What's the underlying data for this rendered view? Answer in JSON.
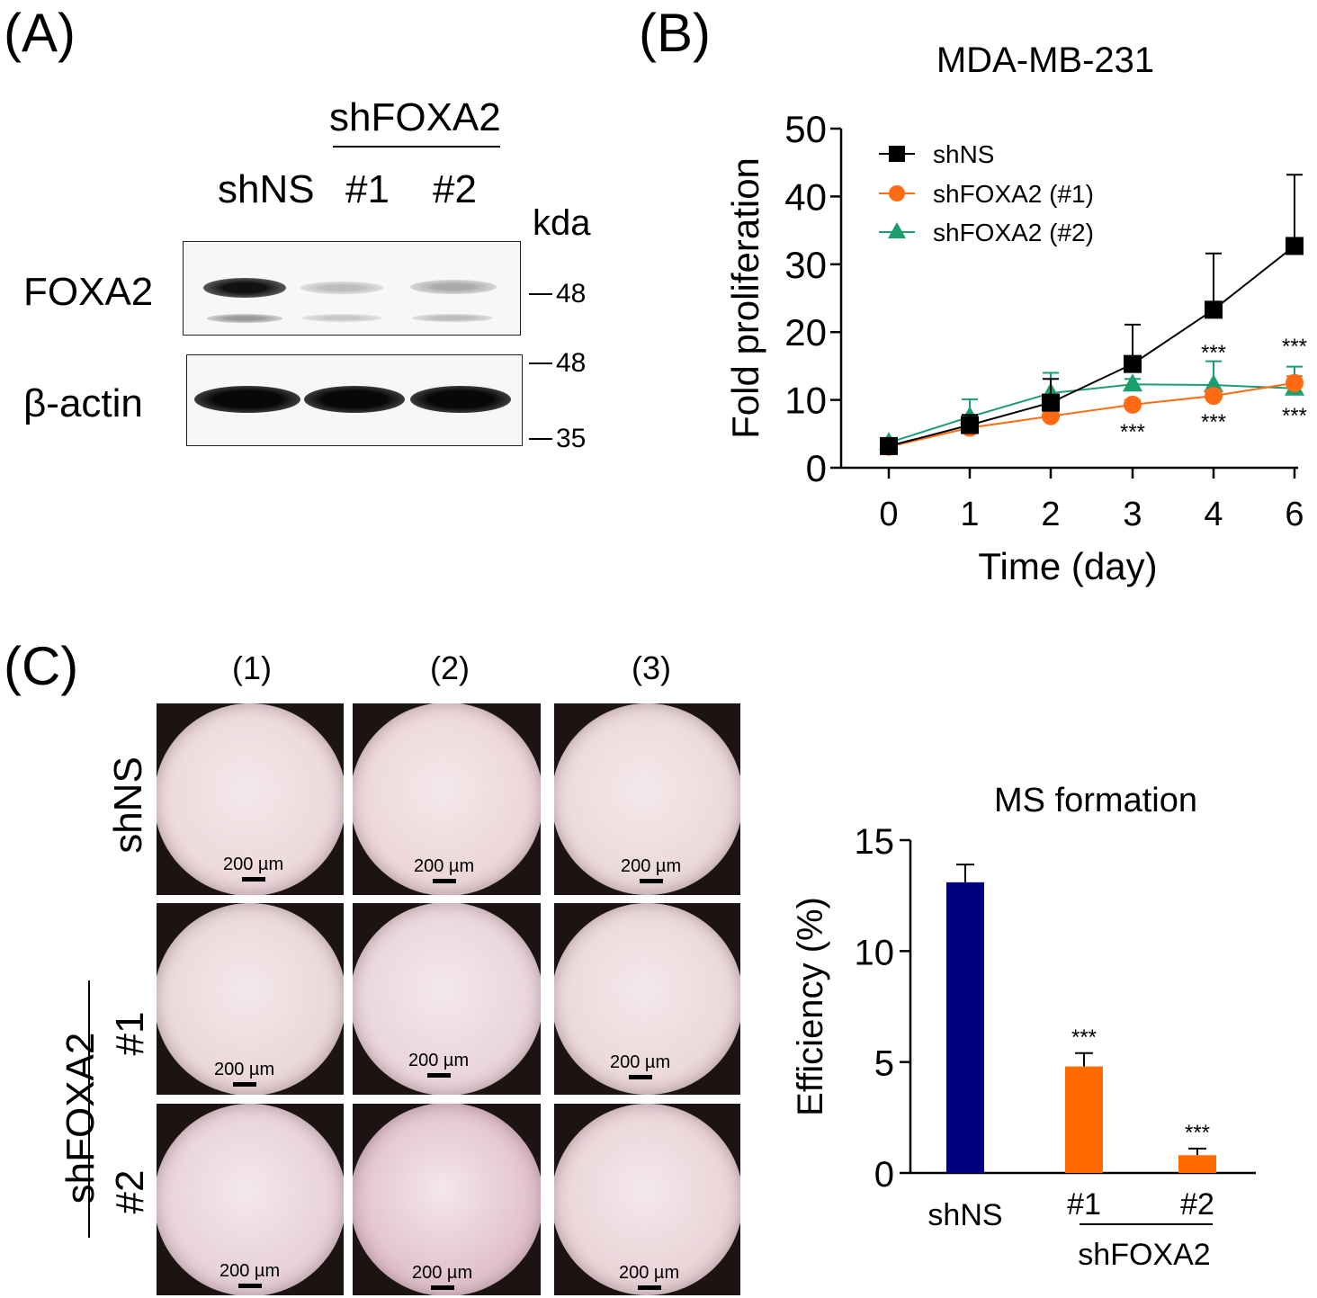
{
  "panelA": {
    "label": "(A)",
    "group_label": "shFOXA2",
    "lanes": [
      "shNS",
      "#1",
      "#2"
    ],
    "kda_label": "kda",
    "rows": [
      {
        "name": "FOXA2",
        "markers": [
          "48"
        ]
      },
      {
        "name": "β-actin",
        "markers": [
          "48",
          "35"
        ]
      }
    ]
  },
  "panelB": {
    "label": "(B)",
    "chart_data": {
      "type": "line",
      "title": "MDA-MB-231",
      "xlabel": "Time (day)",
      "ylabel": "Fold proliferation",
      "x": [
        0,
        1,
        2,
        3,
        4,
        6
      ],
      "x_ticks": [
        "0",
        "1",
        "2",
        "3",
        "4",
        "6"
      ],
      "ylim": [
        0,
        50
      ],
      "y_ticks": [
        "0",
        "10",
        "20",
        "30",
        "40",
        "50"
      ],
      "legend_position": "top-left",
      "series": [
        {
          "name": "shNS",
          "color": "#000000",
          "marker": "square",
          "values": [
            3.2,
            6.3,
            9.6,
            15.3,
            23.3,
            32.7
          ],
          "errors": [
            0.5,
            1.5,
            3.5,
            5.8,
            8.3,
            10.5
          ]
        },
        {
          "name": "shFOXA2 (#1)",
          "color": "#ff6a13",
          "marker": "circle",
          "values": [
            3.1,
            5.9,
            7.6,
            9.3,
            10.6,
            12.5
          ],
          "errors": [
            0.3,
            0.5,
            0.6,
            0.7,
            0.8,
            1.0
          ]
        },
        {
          "name": "shFOXA2 (#2)",
          "color": "#1a9e6e",
          "marker": "triangle",
          "values": [
            3.7,
            7.5,
            11.0,
            12.3,
            12.2,
            11.7
          ],
          "errors": [
            0.5,
            2.6,
            3.0,
            0.8,
            3.5,
            3.2
          ]
        }
      ],
      "annotations": [
        {
          "x": 3,
          "text": "***",
          "position": "below"
        },
        {
          "x": 4,
          "text": "***",
          "position": "above"
        },
        {
          "x": 4,
          "text": "***",
          "position": "below"
        },
        {
          "x": 6,
          "text": "***",
          "position": "above"
        },
        {
          "x": 6,
          "text": "***",
          "position": "below"
        }
      ]
    }
  },
  "panelC": {
    "label": "(C)",
    "columns": [
      "(1)",
      "(2)",
      "(3)"
    ],
    "row_labels": {
      "shNS": "shNS",
      "group": "shFOXA2",
      "r1": "#1",
      "r2": "#2"
    },
    "scale_bar_label": "200 µm",
    "chart_data": {
      "type": "bar",
      "title": "MS formation",
      "ylabel": "Efficiency (%)",
      "categories": [
        "shNS",
        "#1",
        "#2"
      ],
      "group_label": "shFOXA2",
      "values": [
        13.1,
        4.8,
        0.8
      ],
      "errors": [
        0.8,
        0.6,
        0.3
      ],
      "colors": [
        "#00007f",
        "#ff6a00",
        "#ff6a00"
      ],
      "ylim": [
        0,
        15
      ],
      "y_ticks": [
        "0",
        "5",
        "10",
        "15"
      ],
      "annotations": [
        "",
        "***",
        "***"
      ]
    }
  }
}
